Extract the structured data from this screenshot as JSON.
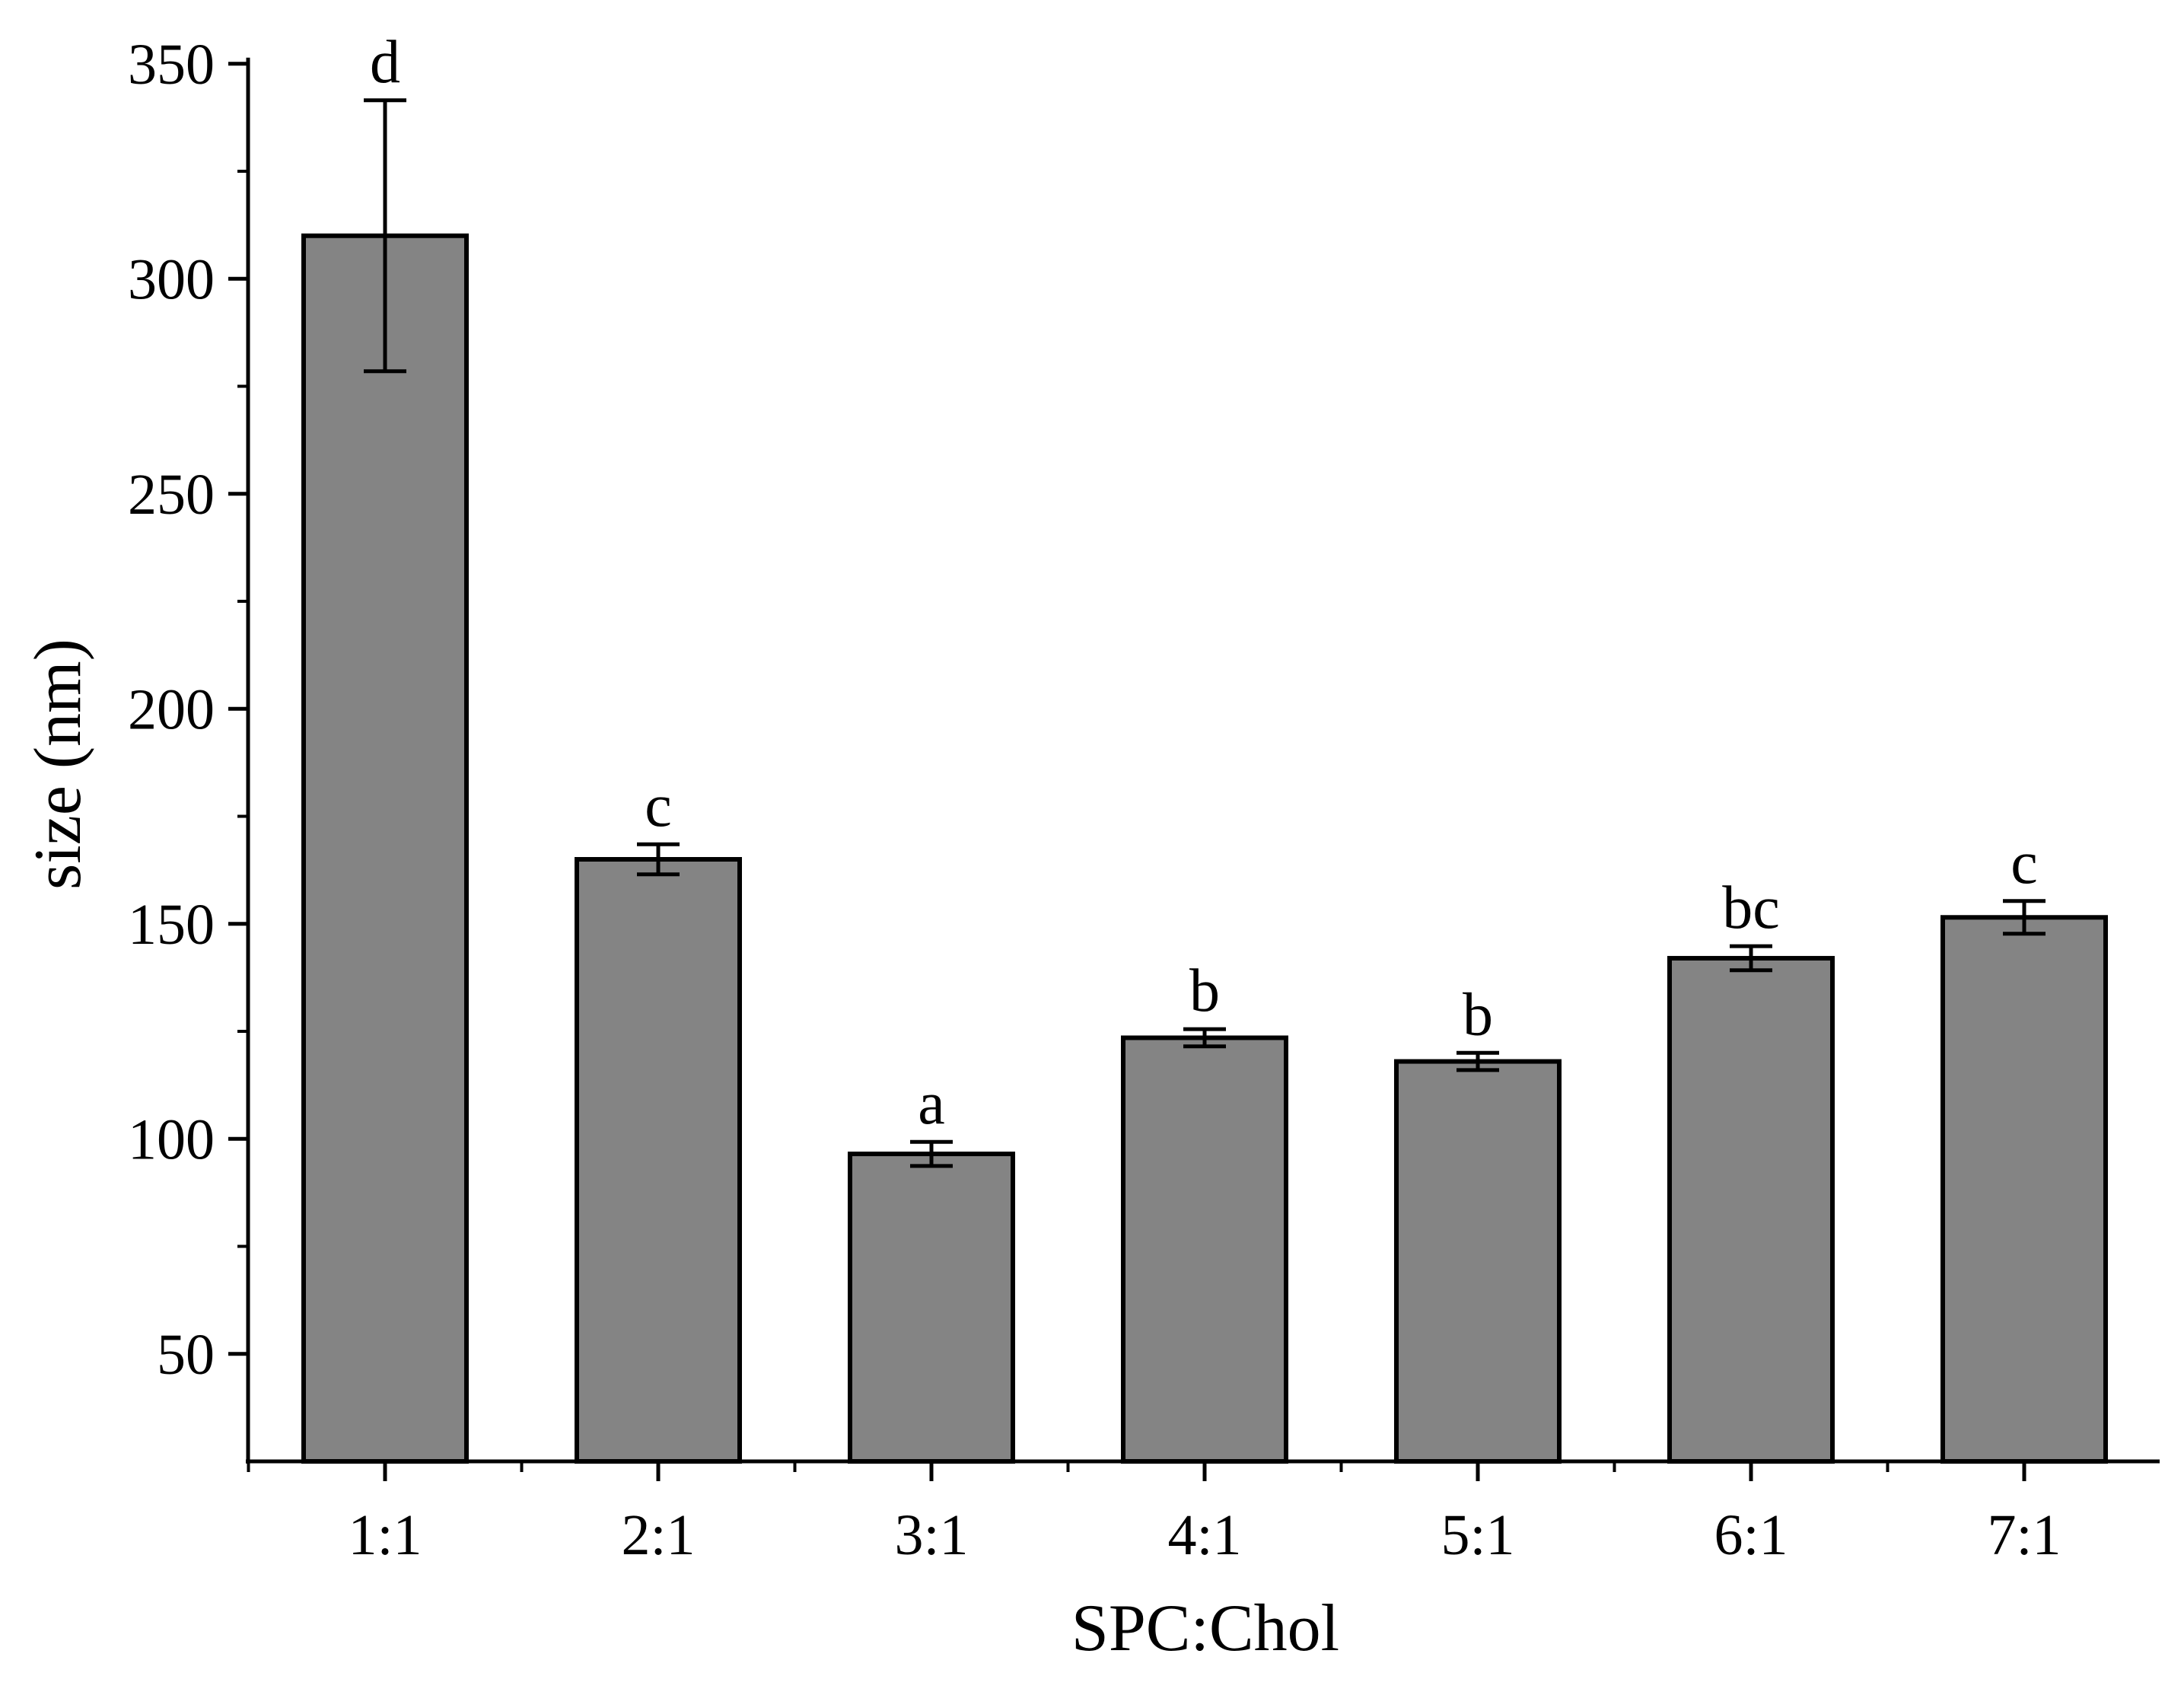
{
  "chart_data": {
    "type": "bar",
    "title": "",
    "xlabel": "SPC:Chol",
    "ylabel": "size (nm)",
    "categories": [
      "1:1",
      "2:1",
      "3:1",
      "4:1",
      "5:1",
      "6:1",
      "7:1"
    ],
    "values": [
      310,
      165,
      96.5,
      123.5,
      118,
      142,
      151.5
    ],
    "errors": [
      31.5,
      3.5,
      2.8,
      2,
      2,
      2.8,
      3.8
    ],
    "significance_labels": [
      "d",
      "c",
      "a",
      "b",
      "b",
      "bc",
      "c"
    ],
    "ylim": [
      25,
      350
    ],
    "yticks": [
      50,
      100,
      150,
      200,
      250,
      300,
      350
    ],
    "ytick_labels": [
      "50",
      "100",
      "150",
      "200",
      "250",
      "300",
      "350"
    ],
    "grid": false,
    "colors": {
      "bar_fill": "#848484",
      "bar_edge": "#000000",
      "axis": "#000000"
    }
  }
}
